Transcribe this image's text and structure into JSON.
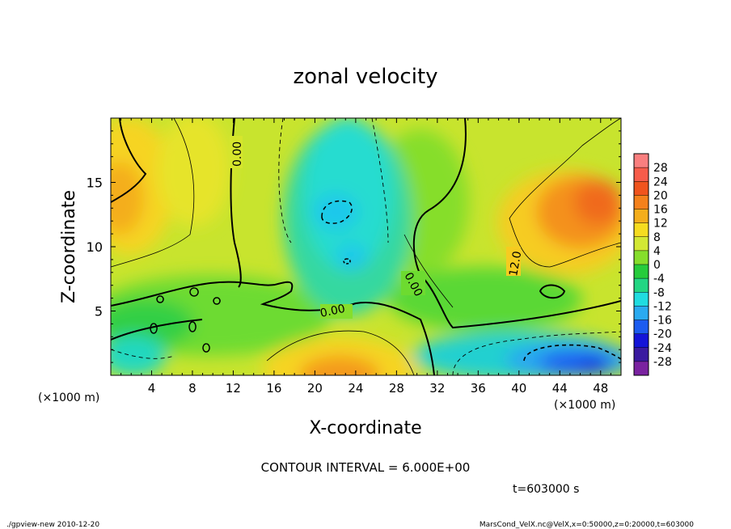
{
  "chart_data": {
    "type": "heatmap",
    "title": "zonal velocity",
    "xlabel": "X-coordinate",
    "ylabel": "Z-coordinate",
    "x_unit": "(×1000 m)",
    "y_unit": "(×1000 m)",
    "xlim": [
      0,
      50
    ],
    "ylim": [
      0,
      20
    ],
    "x_ticks": [
      4,
      8,
      12,
      16,
      20,
      24,
      28,
      32,
      36,
      40,
      44,
      48
    ],
    "y_ticks": [
      5,
      10,
      15
    ],
    "colorbar": {
      "levels": [
        28,
        24,
        20,
        16,
        12,
        8,
        4,
        0,
        -4,
        -8,
        -12,
        -16,
        -20,
        -24,
        -28
      ],
      "colors": [
        "#fa7f7f",
        "#f75c4a",
        "#f0541e",
        "#f4811c",
        "#f4ae1c",
        "#f6dc20",
        "#d3e834",
        "#86de2c",
        "#26cc3c",
        "#22d683",
        "#20dce0",
        "#2aaaf0",
        "#1c5cf0",
        "#1414d8",
        "#3a1aa0",
        "#7a22a0"
      ]
    },
    "contour_labels": [
      "0.00",
      "0.00",
      "0.00",
      "12.0"
    ],
    "contour_interval_text": "CONTOUR INTERVAL = 6.000E+00",
    "time_text": "t=603000 s"
  },
  "footer": {
    "left": "./gpview-new  2010-12-20",
    "right": "MarsCond_VelX.nc@VelX,x=0:50000,z=0:20000,t=603000"
  }
}
